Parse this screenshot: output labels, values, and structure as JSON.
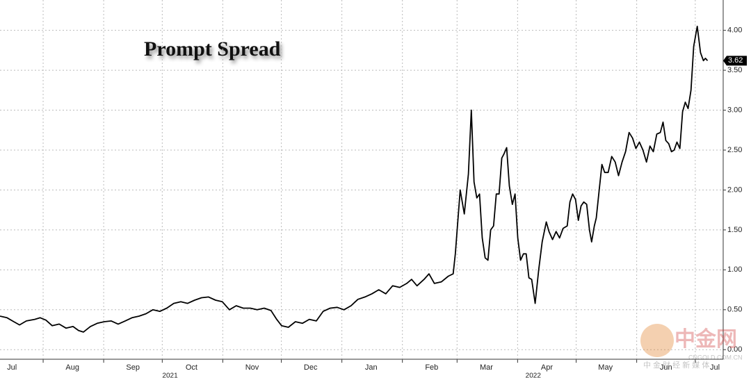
{
  "chart_data": {
    "type": "line",
    "title": "Prompt Spread",
    "x": [
      8.9,
      12.5,
      16.0,
      18.9,
      22.4,
      26.7,
      29.5,
      32.4,
      35.6,
      39.2,
      42.7,
      46.3,
      49.1,
      51.6,
      55.2,
      58.7,
      62.3,
      65.9,
      69.4,
      73.0,
      76.5,
      80.1,
      83.7,
      87.2,
      90.8,
      94.3,
      97.9,
      101.5,
      105.0,
      108.6,
      112.1,
      115.7,
      119.3,
      122.8,
      126.4,
      129.9,
      133.5,
      137.1,
      140.6,
      144.2,
      147.7,
      150.6,
      153.1,
      156.6,
      160.2,
      163.8,
      167.3,
      170.9,
      174.4,
      178.0,
      181.6,
      185.1,
      188.7,
      192.2,
      195.8,
      199.4,
      202.9,
      206.5,
      210.0,
      213.6,
      217.2,
      219.7,
      222.5,
      226.1,
      228.6,
      231.4,
      235.0,
      238.5,
      241.0,
      242.1,
      244.6,
      246.7,
      248.8,
      250.3,
      251.7,
      253.1,
      254.5,
      255.9,
      257.4,
      258.8,
      260.2,
      261.7,
      263.1,
      264.5,
      265.9,
      267.0,
      268.4,
      269.8,
      271.3,
      272.7,
      274.1,
      275.5,
      277.0,
      278.4,
      279.8,
      281.2,
      283.0,
      284.8,
      286.6,
      288.7,
      290.1,
      291.9,
      293.7,
      295.5,
      297.3,
      299.4,
      300.8,
      302.2,
      303.7,
      305.1,
      306.5,
      307.9,
      309.4,
      310.8,
      311.9,
      313.3,
      314.3,
      315.8,
      317.2,
      318.6,
      320.4,
      322.2,
      324.0,
      325.7,
      327.5,
      329.3,
      331.1,
      332.9,
      334.6,
      336.4,
      338.2,
      340.0,
      341.8,
      343.5,
      345.3,
      347.1,
      348.5,
      349.9,
      351.4,
      352.8,
      354.2,
      355.6,
      357.1,
      358.5,
      359.9,
      361.3,
      362.8,
      364.2,
      366.0,
      367.7,
      369.2,
      370.2,
      371.3
    ],
    "series": [
      {
        "color": "#000000",
        "values": [
          0.42,
          0.4,
          0.35,
          0.31,
          0.36,
          0.38,
          0.4,
          0.37,
          0.3,
          0.32,
          0.27,
          0.29,
          0.24,
          0.22,
          0.29,
          0.33,
          0.35,
          0.36,
          0.32,
          0.36,
          0.4,
          0.42,
          0.45,
          0.5,
          0.48,
          0.52,
          0.58,
          0.6,
          0.58,
          0.62,
          0.65,
          0.66,
          0.62,
          0.6,
          0.5,
          0.55,
          0.52,
          0.52,
          0.5,
          0.52,
          0.49,
          0.38,
          0.3,
          0.28,
          0.35,
          0.33,
          0.38,
          0.36,
          0.48,
          0.52,
          0.53,
          0.5,
          0.55,
          0.63,
          0.66,
          0.7,
          0.75,
          0.7,
          0.8,
          0.78,
          0.83,
          0.88,
          0.8,
          0.88,
          0.95,
          0.83,
          0.85,
          0.92,
          0.95,
          1.2,
          2.0,
          1.7,
          2.2,
          3.0,
          2.1,
          1.9,
          1.95,
          1.4,
          1.15,
          1.12,
          1.5,
          1.55,
          1.95,
          1.95,
          2.4,
          2.45,
          2.53,
          2.05,
          1.82,
          1.95,
          1.4,
          1.12,
          1.2,
          1.2,
          0.9,
          0.88,
          0.58,
          1.0,
          1.35,
          1.6,
          1.48,
          1.38,
          1.48,
          1.4,
          1.52,
          1.55,
          1.85,
          1.95,
          1.88,
          1.62,
          1.8,
          1.85,
          1.82,
          1.5,
          1.35,
          1.55,
          1.65,
          2.0,
          2.32,
          2.22,
          2.22,
          2.42,
          2.35,
          2.18,
          2.35,
          2.48,
          2.72,
          2.65,
          2.52,
          2.6,
          2.5,
          2.35,
          2.55,
          2.48,
          2.7,
          2.72,
          2.85,
          2.62,
          2.58,
          2.48,
          2.5,
          2.6,
          2.52,
          2.98,
          3.1,
          3.02,
          3.25,
          3.8,
          4.05,
          3.72,
          3.62,
          3.65,
          3.62
        ]
      }
    ],
    "xlim": [
      8.9,
      379.3
    ],
    "xticks": [
      {
        "value": 0,
        "label": "Jul"
      },
      {
        "value": 31,
        "label": "Aug"
      },
      {
        "value": 62,
        "label": "Sep"
      },
      {
        "value": 92,
        "label": "Oct"
      },
      {
        "value": 123,
        "label": "Nov"
      },
      {
        "value": 153,
        "label": "Dec"
      },
      {
        "value": 184,
        "label": "Jan"
      },
      {
        "value": 215,
        "label": "Feb"
      },
      {
        "value": 243,
        "label": "Mar"
      },
      {
        "value": 274,
        "label": "Apr"
      },
      {
        "value": 304,
        "label": "May"
      },
      {
        "value": 335,
        "label": "Jun"
      },
      {
        "value": 365,
        "label": "Jul"
      }
    ],
    "year_ticks": [
      {
        "value": 96,
        "label": "2021"
      },
      {
        "value": 282,
        "label": "2022"
      }
    ],
    "ylim": [
      -0.12,
      4.38
    ],
    "yticks": [
      {
        "value": 0,
        "label": "0.00"
      },
      {
        "value": 0.5,
        "label": "0.50"
      },
      {
        "value": 1,
        "label": "1.00"
      },
      {
        "value": 1.5,
        "label": "1.50"
      },
      {
        "value": 2,
        "label": "2.00"
      },
      {
        "value": 2.5,
        "label": "2.50"
      },
      {
        "value": 3,
        "label": "3.00"
      },
      {
        "value": 3.5,
        "label": "3.50"
      },
      {
        "value": 4,
        "label": "4.00"
      }
    ],
    "grid": true,
    "watermark": {
      "brand": "中金网",
      "site": "CNGOLD.COM.CN",
      "tagline": "中 金 财 经 新 媒 体"
    }
  }
}
